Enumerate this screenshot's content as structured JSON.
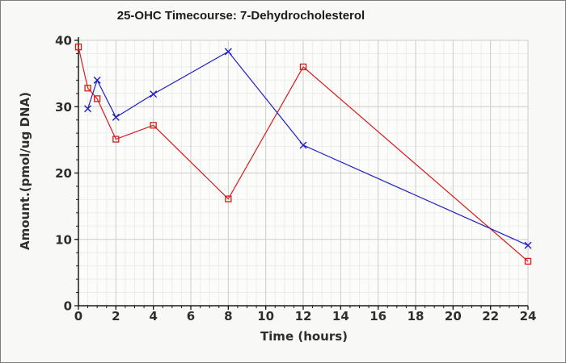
{
  "figure": {
    "background": "#f8f8f7",
    "border_color": "#7c7c7c",
    "plot_background": "#fcfcfb",
    "grid_minor_color": "#ececec",
    "grid_major_color": "#cccccc",
    "axis_color": "#1a1a1a",
    "text_color": "#2e2e2e"
  },
  "chart_data": {
    "type": "line",
    "title": "25-OHC Timecourse: 7-Dehydrocholesterol",
    "xlabel": "Time (hours)",
    "ylabel": "Amount.(pmol/ug DNA)",
    "xlim": [
      0,
      24
    ],
    "ylim": [
      0,
      40
    ],
    "x_ticks": [
      0,
      2,
      4,
      6,
      8,
      10,
      12,
      14,
      16,
      18,
      20,
      22,
      24
    ],
    "y_ticks": [
      0,
      10,
      20,
      30,
      40
    ],
    "x_minor_step": 0.5,
    "y_minor_step": 2,
    "grid": "minor+major",
    "legend_position": "none",
    "series": [
      {
        "name": "series-red-squares",
        "marker": "open-square",
        "color": "#d81a1a",
        "x": [
          0,
          0.5,
          1,
          2,
          4,
          8,
          12,
          24
        ],
        "values": [
          39.0,
          32.8,
          31.2,
          25.1,
          27.2,
          16.1,
          36.0,
          6.7
        ]
      },
      {
        "name": "series-blue-x",
        "marker": "x-cross",
        "color": "#1f1fc4",
        "x": [
          0.5,
          1,
          2,
          4,
          8,
          12,
          24
        ],
        "values": [
          29.7,
          34.0,
          28.4,
          31.9,
          38.3,
          24.2,
          9.1
        ]
      }
    ]
  }
}
